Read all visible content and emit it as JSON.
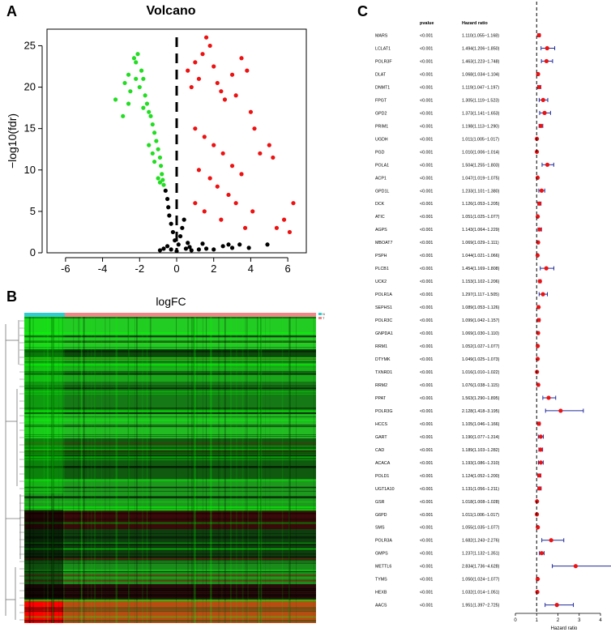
{
  "panels": {
    "a": "A",
    "b": "B",
    "c": "C"
  },
  "chart_data": [
    {
      "type": "scatter",
      "title": "Volcano",
      "xlabel": "logFC",
      "ylabel": "−log10(fdr)",
      "xlim": [
        -7,
        7
      ],
      "ylim": [
        0,
        27
      ],
      "xticks": [
        -6,
        -4,
        -2,
        0,
        2,
        4,
        6
      ],
      "yticks": [
        0,
        5,
        10,
        15,
        20,
        25
      ],
      "cutoffs": {
        "x": 0,
        "y": 0
      },
      "series": [
        {
          "name": "down",
          "color": "#22dd22",
          "points": [
            [
              -3.3,
              18.5
            ],
            [
              -2.9,
              16.5
            ],
            [
              -2.8,
              20.5
            ],
            [
              -2.6,
              21.5
            ],
            [
              -2.5,
              19.5
            ],
            [
              -2.3,
              23.5
            ],
            [
              -2.2,
              23.0
            ],
            [
              -2.1,
              24.0
            ],
            [
              -2.0,
              20.0
            ],
            [
              -1.9,
              22.0
            ],
            [
              -1.8,
              21.0
            ],
            [
              -1.7,
              19.0
            ],
            [
              -1.6,
              18.0
            ],
            [
              -1.5,
              17.0
            ],
            [
              -1.4,
              16.5
            ],
            [
              -1.3,
              15.5
            ],
            [
              -1.2,
              14.5
            ],
            [
              -1.1,
              13.5
            ],
            [
              -1.0,
              12.5
            ],
            [
              -0.9,
              11.5
            ],
            [
              -0.85,
              10.5
            ],
            [
              -0.8,
              9.5
            ],
            [
              -0.75,
              8.8
            ],
            [
              -0.7,
              8.2
            ],
            [
              -1.2,
              11.0
            ],
            [
              -1.0,
              9.0
            ],
            [
              -1.5,
              13.0
            ],
            [
              -1.3,
              12.0
            ],
            [
              -0.9,
              8.5
            ],
            [
              -2.6,
              18.0
            ],
            [
              -2.2,
              21.0
            ],
            [
              -1.8,
              17.5
            ]
          ]
        },
        {
          "name": "not significant",
          "color": "#000000",
          "points": [
            [
              -0.6,
              7.5
            ],
            [
              -0.5,
              6.5
            ],
            [
              -0.45,
              5.5
            ],
            [
              -0.4,
              4.5
            ],
            [
              -0.3,
              3.5
            ],
            [
              -0.2,
              2.5
            ],
            [
              -0.1,
              1.5
            ],
            [
              0.1,
              1.0
            ],
            [
              0.2,
              2.0
            ],
            [
              0.3,
              3.0
            ],
            [
              0.4,
              4.0
            ],
            [
              -0.5,
              0.8
            ],
            [
              0.5,
              0.5
            ],
            [
              0.8,
              0.3
            ],
            [
              1.2,
              0.4
            ],
            [
              1.6,
              0.5
            ],
            [
              2.0,
              0.4
            ],
            [
              2.5,
              0.8
            ],
            [
              3.0,
              0.6
            ],
            [
              3.4,
              1.0
            ],
            [
              3.9,
              0.6
            ],
            [
              4.9,
              1.0
            ],
            [
              -0.7,
              0.5
            ],
            [
              -0.9,
              0.3
            ],
            [
              0.6,
              1.2
            ],
            [
              1.4,
              1.1
            ],
            [
              2.8,
              1.0
            ],
            [
              -0.3,
              0.4
            ],
            [
              0.0,
              0.2
            ],
            [
              0.7,
              0.7
            ]
          ]
        },
        {
          "name": "up",
          "color": "#ee1111",
          "points": [
            [
              0.6,
              22.0
            ],
            [
              0.8,
              20.0
            ],
            [
              1.0,
              23.0
            ],
            [
              1.2,
              21.0
            ],
            [
              1.4,
              24.0
            ],
            [
              1.6,
              26.0
            ],
            [
              1.8,
              25.0
            ],
            [
              2.0,
              22.5
            ],
            [
              2.2,
              20.5
            ],
            [
              2.4,
              19.5
            ],
            [
              2.6,
              18.5
            ],
            [
              3.0,
              21.5
            ],
            [
              3.2,
              19.0
            ],
            [
              3.5,
              23.5
            ],
            [
              3.8,
              22.0
            ],
            [
              4.0,
              17.0
            ],
            [
              4.2,
              15.0
            ],
            [
              4.5,
              12.0
            ],
            [
              5.0,
              13.0
            ],
            [
              5.2,
              11.5
            ],
            [
              5.4,
              3.0
            ],
            [
              5.8,
              4.0
            ],
            [
              6.3,
              6.0
            ],
            [
              6.1,
              2.5
            ],
            [
              1.0,
              15.0
            ],
            [
              1.5,
              14.0
            ],
            [
              2.0,
              13.0
            ],
            [
              2.5,
              12.0
            ],
            [
              3.0,
              10.5
            ],
            [
              3.5,
              9.5
            ],
            [
              1.2,
              10.0
            ],
            [
              1.8,
              9.0
            ],
            [
              2.2,
              8.0
            ],
            [
              2.8,
              7.0
            ],
            [
              3.2,
              6.0
            ],
            [
              4.1,
              5.0
            ],
            [
              1.0,
              6.0
            ],
            [
              1.5,
              5.0
            ],
            [
              2.4,
              4.0
            ],
            [
              3.7,
              3.0
            ]
          ]
        }
      ]
    },
    {
      "type": "heatmap",
      "xlabel": "",
      "ylabel": "",
      "description": "Hierarchically clustered expression heatmap, green-black-red colour scale",
      "colors": {
        "low": "#00ff00",
        "mid": "#000000",
        "high": "#ff0000"
      },
      "legend_labels": [
        "N",
        "T"
      ]
    },
    {
      "type": "forest",
      "headers": {
        "gene": "",
        "pvalue": "pvalue",
        "hr": "Hazard ratio"
      },
      "xlabel": "Hazard ratio",
      "xlim": [
        0,
        4
      ],
      "xticks": [
        0,
        1,
        2,
        3,
        4
      ],
      "reference": 1,
      "colors": {
        "point": "#ee1111",
        "ci": "#1f2a99",
        "ref": "#000000"
      },
      "rows": [
        {
          "gene": "MARS",
          "pvalue": "<0.001",
          "hr_text": "1.110(1.055−1.168)",
          "hr": 1.11,
          "low": 1.055,
          "high": 1.168
        },
        {
          "gene": "LCLAT1",
          "pvalue": "<0.001",
          "hr_text": "1.494(1.206−1.850)",
          "hr": 1.494,
          "low": 1.206,
          "high": 1.85
        },
        {
          "gene": "POLR3F",
          "pvalue": "<0.001",
          "hr_text": "1.463(1.223−1.748)",
          "hr": 1.463,
          "low": 1.223,
          "high": 1.748
        },
        {
          "gene": "DLAT",
          "pvalue": "<0.001",
          "hr_text": "1.068(1.034−1.104)",
          "hr": 1.068,
          "low": 1.034,
          "high": 1.104
        },
        {
          "gene": "DNMT1",
          "pvalue": "<0.001",
          "hr_text": "1.119(1.047−1.197)",
          "hr": 1.119,
          "low": 1.047,
          "high": 1.197
        },
        {
          "gene": "FPGT",
          "pvalue": "<0.001",
          "hr_text": "1.305(1.119−1.523)",
          "hr": 1.305,
          "low": 1.119,
          "high": 1.523
        },
        {
          "gene": "GPD2",
          "pvalue": "<0.001",
          "hr_text": "1.373(1.141−1.653)",
          "hr": 1.373,
          "low": 1.141,
          "high": 1.653
        },
        {
          "gene": "PRIM1",
          "pvalue": "<0.001",
          "hr_text": "1.198(1.113−1.290)",
          "hr": 1.198,
          "low": 1.113,
          "high": 1.29
        },
        {
          "gene": "UGDH",
          "pvalue": "<0.001",
          "hr_text": "1.011(1.005−1.017)",
          "hr": 1.011,
          "low": 1.005,
          "high": 1.017
        },
        {
          "gene": "PGD",
          "pvalue": "<0.001",
          "hr_text": "1.010(1.006−1.014)",
          "hr": 1.01,
          "low": 1.006,
          "high": 1.014
        },
        {
          "gene": "POLA1",
          "pvalue": "<0.001",
          "hr_text": "1.504(1.255−1.803)",
          "hr": 1.504,
          "low": 1.255,
          "high": 1.803
        },
        {
          "gene": "ACP1",
          "pvalue": "<0.001",
          "hr_text": "1.047(1.019−1.075)",
          "hr": 1.047,
          "low": 1.019,
          "high": 1.075
        },
        {
          "gene": "GPD1L",
          "pvalue": "<0.001",
          "hr_text": "1.233(1.101−1.380)",
          "hr": 1.233,
          "low": 1.101,
          "high": 1.38
        },
        {
          "gene": "DCK",
          "pvalue": "<0.001",
          "hr_text": "1.126(1.053−1.205)",
          "hr": 1.126,
          "low": 1.053,
          "high": 1.205
        },
        {
          "gene": "ATIC",
          "pvalue": "<0.001",
          "hr_text": "1.051(1.025−1.077)",
          "hr": 1.051,
          "low": 1.025,
          "high": 1.077
        },
        {
          "gene": "AGPS",
          "pvalue": "<0.001",
          "hr_text": "1.143(1.064−1.229)",
          "hr": 1.143,
          "low": 1.064,
          "high": 1.229
        },
        {
          "gene": "MBOAT7",
          "pvalue": "<0.001",
          "hr_text": "1.069(1.029−1.111)",
          "hr": 1.069,
          "low": 1.029,
          "high": 1.111
        },
        {
          "gene": "PSPH",
          "pvalue": "<0.001",
          "hr_text": "1.044(1.021−1.066)",
          "hr": 1.044,
          "low": 1.021,
          "high": 1.066
        },
        {
          "gene": "PLCB1",
          "pvalue": "<0.001",
          "hr_text": "1.454(1.169−1.808)",
          "hr": 1.454,
          "low": 1.169,
          "high": 1.808
        },
        {
          "gene": "UCK2",
          "pvalue": "<0.001",
          "hr_text": "1.153(1.102−1.206)",
          "hr": 1.153,
          "low": 1.102,
          "high": 1.206
        },
        {
          "gene": "POLR1A",
          "pvalue": "<0.001",
          "hr_text": "1.297(1.117−1.505)",
          "hr": 1.297,
          "low": 1.117,
          "high": 1.505
        },
        {
          "gene": "SEPHS1",
          "pvalue": "<0.001",
          "hr_text": "1.089(1.053−1.126)",
          "hr": 1.089,
          "low": 1.053,
          "high": 1.126
        },
        {
          "gene": "POLR3C",
          "pvalue": "<0.001",
          "hr_text": "1.099(1.042−1.157)",
          "hr": 1.099,
          "low": 1.042,
          "high": 1.157
        },
        {
          "gene": "GNPDA1",
          "pvalue": "<0.001",
          "hr_text": "1.069(1.030−1.110)",
          "hr": 1.069,
          "low": 1.03,
          "high": 1.11
        },
        {
          "gene": "RRM1",
          "pvalue": "<0.001",
          "hr_text": "1.052(1.027−1.077)",
          "hr": 1.052,
          "low": 1.027,
          "high": 1.077
        },
        {
          "gene": "DTYMK",
          "pvalue": "<0.001",
          "hr_text": "1.049(1.025−1.073)",
          "hr": 1.049,
          "low": 1.025,
          "high": 1.073
        },
        {
          "gene": "TXNRD1",
          "pvalue": "<0.001",
          "hr_text": "1.016(1.010−1.022)",
          "hr": 1.016,
          "low": 1.01,
          "high": 1.022
        },
        {
          "gene": "RRM2",
          "pvalue": "<0.001",
          "hr_text": "1.076(1.038−1.115)",
          "hr": 1.076,
          "low": 1.038,
          "high": 1.115
        },
        {
          "gene": "PPAT",
          "pvalue": "<0.001",
          "hr_text": "1.563(1.290−1.895)",
          "hr": 1.563,
          "low": 1.29,
          "high": 1.895
        },
        {
          "gene": "POLR3G",
          "pvalue": "<0.001",
          "hr_text": "2.128(1.418−3.195)",
          "hr": 2.128,
          "low": 1.418,
          "high": 3.195
        },
        {
          "gene": "HCCS",
          "pvalue": "<0.001",
          "hr_text": "1.105(1.046−1.166)",
          "hr": 1.105,
          "low": 1.046,
          "high": 1.166
        },
        {
          "gene": "GART",
          "pvalue": "<0.001",
          "hr_text": "1.190(1.077−1.314)",
          "hr": 1.19,
          "low": 1.077,
          "high": 1.314
        },
        {
          "gene": "CAD",
          "pvalue": "<0.001",
          "hr_text": "1.189(1.103−1.282)",
          "hr": 1.189,
          "low": 1.103,
          "high": 1.282
        },
        {
          "gene": "ACACA",
          "pvalue": "<0.001",
          "hr_text": "1.193(1.086−1.310)",
          "hr": 1.193,
          "low": 1.086,
          "high": 1.31
        },
        {
          "gene": "POLD1",
          "pvalue": "<0.001",
          "hr_text": "1.124(1.052−1.200)",
          "hr": 1.124,
          "low": 1.052,
          "high": 1.2
        },
        {
          "gene": "UGT1A10",
          "pvalue": "<0.001",
          "hr_text": "1.131(1.056−1.211)",
          "hr": 1.131,
          "low": 1.056,
          "high": 1.211
        },
        {
          "gene": "GSR",
          "pvalue": "<0.001",
          "hr_text": "1.018(1.008−1.028)",
          "hr": 1.018,
          "low": 1.008,
          "high": 1.028
        },
        {
          "gene": "G6PD",
          "pvalue": "<0.001",
          "hr_text": "1.011(1.006−1.017)",
          "hr": 1.011,
          "low": 1.006,
          "high": 1.017
        },
        {
          "gene": "SMS",
          "pvalue": "<0.001",
          "hr_text": "1.055(1.035−1.077)",
          "hr": 1.055,
          "low": 1.035,
          "high": 1.077
        },
        {
          "gene": "POLR3A",
          "pvalue": "<0.001",
          "hr_text": "1.682(1.243−2.276)",
          "hr": 1.682,
          "low": 1.243,
          "high": 2.276
        },
        {
          "gene": "GMPS",
          "pvalue": "<0.001",
          "hr_text": "1.237(1.132−1.351)",
          "hr": 1.237,
          "low": 1.132,
          "high": 1.351
        },
        {
          "gene": "METTL6",
          "pvalue": "<0.001",
          "hr_text": "2.834(1.736−4.628)",
          "hr": 2.834,
          "low": 1.736,
          "high": 4.628
        },
        {
          "gene": "TYMS",
          "pvalue": "<0.001",
          "hr_text": "1.050(1.024−1.077)",
          "hr": 1.05,
          "low": 1.024,
          "high": 1.077
        },
        {
          "gene": "HEXB",
          "pvalue": "<0.001",
          "hr_text": "1.032(1.014−1.051)",
          "hr": 1.032,
          "low": 1.014,
          "high": 1.051
        },
        {
          "gene": "AACS",
          "pvalue": "<0.001",
          "hr_text": "1.951(1.397−2.725)",
          "hr": 1.951,
          "low": 1.397,
          "high": 2.725
        }
      ]
    }
  ]
}
